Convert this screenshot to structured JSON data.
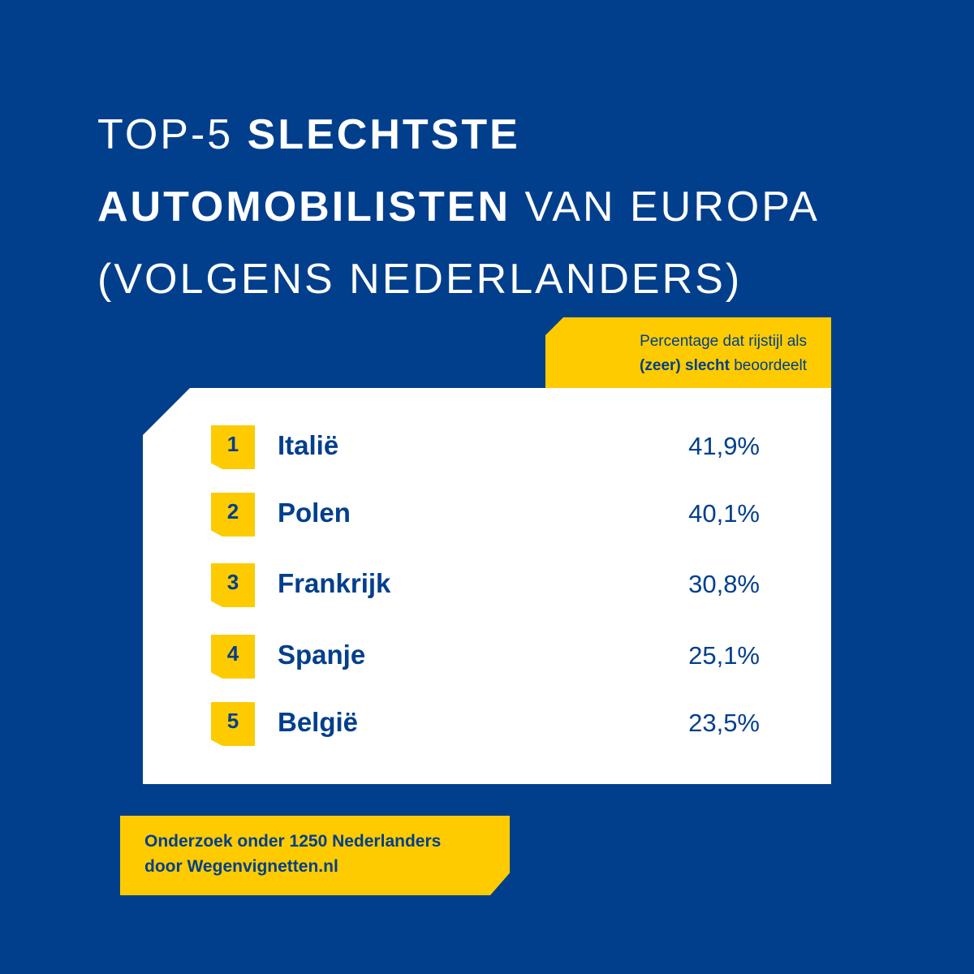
{
  "title": {
    "line1_light": "TOP-5 ",
    "line1_bold": "SLECHTSTE",
    "line2_bold": "AUTOMOBILISTEN",
    "line2_light": " VAN EUROPA",
    "line3_light": "(VOLGENS NEDERLANDERS)"
  },
  "header_label": {
    "line1": "Percentage dat rijstijl als",
    "line2_bold": "(zeer) slecht",
    "line2_rest": " beoordeelt"
  },
  "ranking": [
    {
      "rank": "1",
      "country": "Italië",
      "percentage": "41,9%"
    },
    {
      "rank": "2",
      "country": "Polen",
      "percentage": "40,1%"
    },
    {
      "rank": "3",
      "country": "Frankrijk",
      "percentage": "30,8%"
    },
    {
      "rank": "4",
      "country": "Spanje",
      "percentage": "25,1%"
    },
    {
      "rank": "5",
      "country": "België",
      "percentage": "23,5%"
    }
  ],
  "footer": {
    "line1": "Onderzoek onder 1250 Nederlanders",
    "line2": "door Wegenvignetten.nl"
  },
  "colors": {
    "background": "#013f8c",
    "accent": "#fdcb00",
    "card": "#ffffff"
  }
}
